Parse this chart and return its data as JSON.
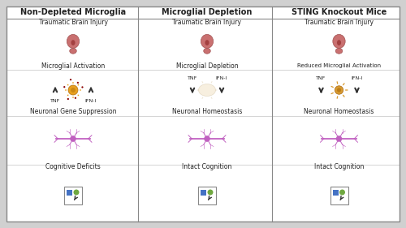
{
  "background_color": "#d0d0d0",
  "panel_bg": "#f5f5f5",
  "border_color": "#888888",
  "columns": [
    "Non-Depleted Microglia",
    "Microglial Depletion",
    "STING Knockout Mice"
  ],
  "row1_label": "Traumatic Brain Injury",
  "col1_row2": "Microglial Activation",
  "col2_row2": "Microglial Depletion",
  "col3_row2": "Reduced Microglial Activation",
  "col1_row3": "Neuronal Gene Suppression",
  "col2_row3": "Neuronal Homeostasis",
  "col3_row3": "Neuronal Homeostasis",
  "col1_row4": "Cognitive Deficits",
  "col2_row4": "Intact Cognition",
  "col3_row4": "Intact Cognition",
  "brain_color_active": "#c97070",
  "microglia_active_color": "#e8a020",
  "microglia_reduced_color": "#d4901a",
  "neuron_color": "#c060c0",
  "dot_color": "#8b0000",
  "text_color": "#222222",
  "header_fontsize": 7,
  "label_fontsize": 5.5,
  "arrow_color": "#333333",
  "legend_blue": "#4472c4",
  "legend_green": "#70a840",
  "legend_arrow_color": "#333333"
}
